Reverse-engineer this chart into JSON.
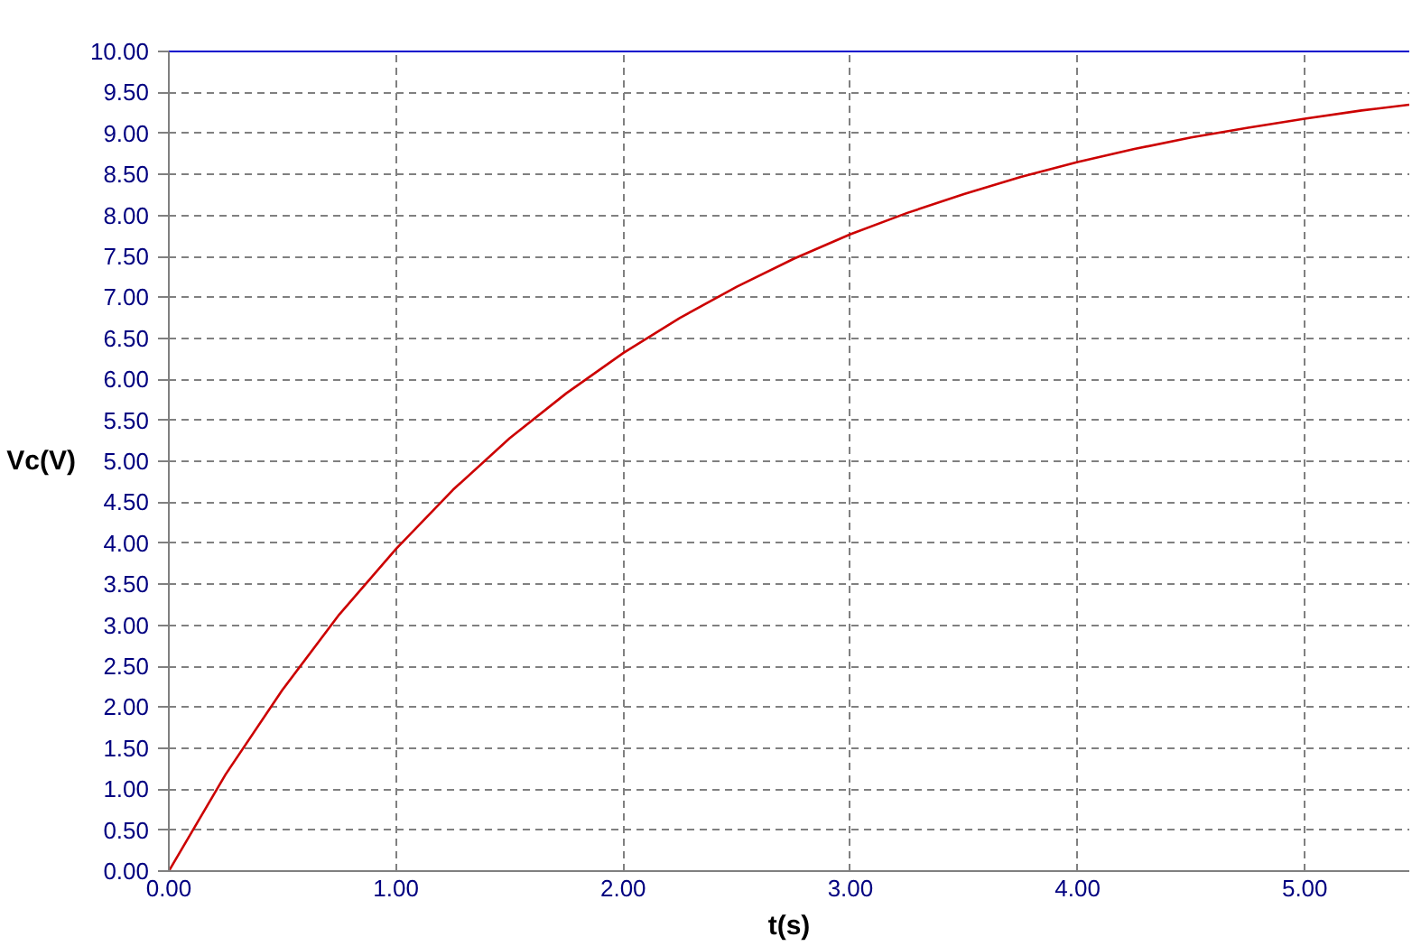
{
  "chart_data": {
    "type": "line",
    "xlabel": "t(s)",
    "ylabel": "Vc(V)",
    "x": [
      0,
      0.25,
      0.5,
      0.75,
      1,
      1.25,
      1.5,
      1.75,
      2,
      2.25,
      2.5,
      2.75,
      3,
      3.25,
      3.5,
      3.75,
      4,
      4.25,
      4.5,
      4.75,
      5,
      5.25,
      5.46
    ],
    "series": [
      {
        "color": "#cc0000",
        "values": [
          0,
          1.18,
          2.21,
          3.13,
          3.93,
          4.65,
          5.28,
          5.83,
          6.32,
          6.75,
          7.13,
          7.47,
          7.77,
          8.03,
          8.26,
          8.47,
          8.65,
          8.81,
          8.95,
          9.07,
          9.18,
          9.28,
          9.35
        ]
      }
    ],
    "xlim": [
      0,
      5.46
    ],
    "ylim": [
      0,
      10
    ],
    "xticks": [
      {
        "value": 0,
        "label": "0.00"
      },
      {
        "value": 1,
        "label": "1.00"
      },
      {
        "value": 2,
        "label": "2.00"
      },
      {
        "value": 3,
        "label": "3.00"
      },
      {
        "value": 4,
        "label": "4.00"
      },
      {
        "value": 5,
        "label": "5.00"
      }
    ],
    "yticks": [
      {
        "value": 0,
        "label": "0.00"
      },
      {
        "value": 0.5,
        "label": "0.50"
      },
      {
        "value": 1,
        "label": "1.00"
      },
      {
        "value": 1.5,
        "label": "1.50"
      },
      {
        "value": 2,
        "label": "2.00"
      },
      {
        "value": 2.5,
        "label": "2.50"
      },
      {
        "value": 3,
        "label": "3.00"
      },
      {
        "value": 3.5,
        "label": "3.50"
      },
      {
        "value": 4,
        "label": "4.00"
      },
      {
        "value": 4.5,
        "label": "4.50"
      },
      {
        "value": 5,
        "label": "5.00"
      },
      {
        "value": 5.5,
        "label": "5.50"
      },
      {
        "value": 6,
        "label": "6.00"
      },
      {
        "value": 6.5,
        "label": "6.50"
      },
      {
        "value": 7,
        "label": "7.00"
      },
      {
        "value": 7.5,
        "label": "7.50"
      },
      {
        "value": 8,
        "label": "8.00"
      },
      {
        "value": 8.5,
        "label": "8.50"
      },
      {
        "value": 9,
        "label": "9.00"
      },
      {
        "value": 9.5,
        "label": "9.50"
      },
      {
        "value": 10,
        "label": "10.00"
      }
    ],
    "grid": true,
    "marker": "none",
    "line_style": "solid"
  }
}
